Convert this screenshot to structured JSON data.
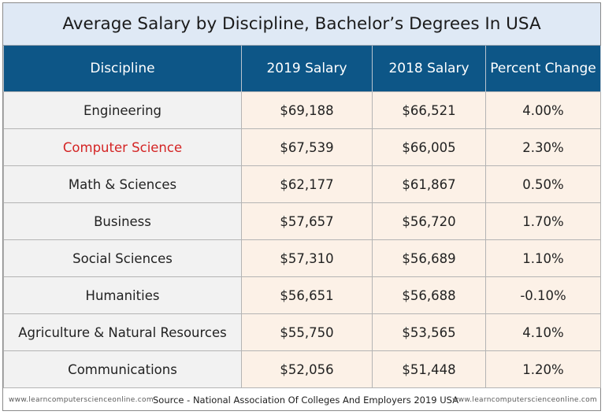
{
  "title": "Average Salary by Discipline, Bachelor’s Degrees In USA",
  "colors": {
    "header_bg": "#0d5687",
    "title_bg": "#dfe9f5",
    "discipline_cell_bg": "#f2f2f2",
    "value_cell_bg": "#fcf1e7",
    "highlight_text": "#d42424"
  },
  "chart_data": {
    "type": "table",
    "title": "Average Salary by Discipline, Bachelor’s Degrees In USA",
    "columns": [
      "Discipline",
      "2019 Salary",
      "2018 Salary",
      "Percent Change"
    ],
    "rows": [
      {
        "discipline": "Engineering",
        "salary_2019": "$69,188",
        "salary_2018": "$66,521",
        "percent_change": "4.00%",
        "highlight": false
      },
      {
        "discipline": "Computer Science",
        "salary_2019": "$67,539",
        "salary_2018": "$66,005",
        "percent_change": "2.30%",
        "highlight": true
      },
      {
        "discipline": "Math & Sciences",
        "salary_2019": "$62,177",
        "salary_2018": "$61,867",
        "percent_change": "0.50%",
        "highlight": false
      },
      {
        "discipline": "Business",
        "salary_2019": "$57,657",
        "salary_2018": "$56,720",
        "percent_change": "1.70%",
        "highlight": false
      },
      {
        "discipline": "Social Sciences",
        "salary_2019": "$57,310",
        "salary_2018": "$56,689",
        "percent_change": "1.10%",
        "highlight": false
      },
      {
        "discipline": "Humanities",
        "salary_2019": "$56,651",
        "salary_2018": "$56,688",
        "percent_change": "-0.10%",
        "highlight": false
      },
      {
        "discipline": "Agriculture & Natural Resources",
        "salary_2019": "$55,750",
        "salary_2018": "$53,565",
        "percent_change": "4.10%",
        "highlight": false
      },
      {
        "discipline": "Communications",
        "salary_2019": "$52,056",
        "salary_2018": "$51,448",
        "percent_change": "1.20%",
        "highlight": false
      }
    ]
  },
  "footer": {
    "site_left": "www.learncomputerscienceonline.com",
    "source": "Source - National Association Of Colleges And Employers 2019  USA",
    "site_right": "www.learncomputerscienceonline.com"
  }
}
